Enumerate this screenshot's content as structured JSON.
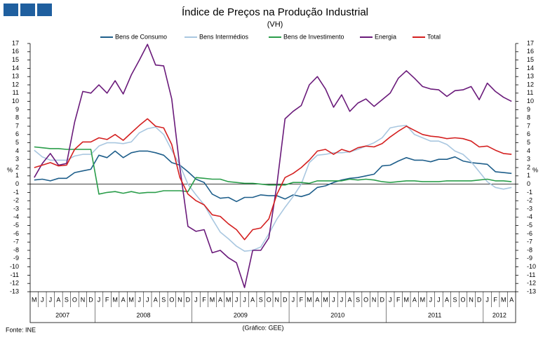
{
  "chart_data": {
    "type": "line",
    "title": "Índice de Preços na Produção Industrial",
    "subtitle": "(VH)",
    "ylabel": "%",
    "y2label": "%",
    "source": "Fonte: INE",
    "credit": "(Gráfico: GEE)",
    "categories": [
      "M",
      "J",
      "J",
      "A",
      "S",
      "O",
      "N",
      "D",
      "J",
      "F",
      "M",
      "A",
      "M",
      "J",
      "J",
      "A",
      "S",
      "O",
      "N",
      "D",
      "J",
      "F",
      "M",
      "A",
      "M",
      "J",
      "J",
      "A",
      "S",
      "O",
      "N",
      "D",
      "J",
      "F",
      "M",
      "A",
      "M",
      "J",
      "J",
      "A",
      "S",
      "O",
      "N",
      "D",
      "J",
      "F",
      "M",
      "A",
      "M",
      "J",
      "J",
      "A",
      "S",
      "O",
      "N",
      "D",
      "J",
      "F",
      "M",
      "A"
    ],
    "years": [
      "2007",
      "2008",
      "2009",
      "2010",
      "2011",
      "2012"
    ],
    "ylim": [
      -13,
      17
    ],
    "yticks": [
      -13,
      -12,
      -11,
      -10,
      -9,
      -8,
      -7,
      -6,
      -5,
      -4,
      -3,
      -2,
      -1,
      0,
      1,
      2,
      3,
      4,
      5,
      6,
      7,
      8,
      9,
      10,
      11,
      12,
      13,
      14,
      15,
      16,
      17
    ],
    "grid": false,
    "legend": "top",
    "series": [
      {
        "name": "Bens de Consumo",
        "color": "#1f5f8b",
        "values": [
          0.5,
          0.6,
          0.4,
          0.7,
          0.7,
          1.4,
          1.6,
          1.8,
          3.5,
          3.2,
          4.0,
          3.2,
          3.8,
          4.0,
          4.0,
          3.8,
          3.5,
          2.6,
          2.3,
          1.5,
          0.6,
          0.2,
          -1.2,
          -1.7,
          -1.6,
          -2.1,
          -1.6,
          -1.6,
          -1.3,
          -1.4,
          -1.4,
          -1.8,
          -1.3,
          -1.5,
          -1.2,
          -0.4,
          -0.2,
          0.2,
          0.5,
          0.7,
          0.8,
          1.0,
          1.2,
          2.2,
          2.3,
          2.8,
          3.2,
          2.9,
          2.9,
          2.7,
          3.0,
          3.0,
          3.3,
          2.8,
          2.6,
          2.5,
          2.4,
          1.5,
          1.4,
          1.3
        ]
      },
      {
        "name": "Bens Intermédios",
        "color": "#a9c7e0",
        "values": [
          4.1,
          3.3,
          2.9,
          2.9,
          2.9,
          3.4,
          3.6,
          3.6,
          4.6,
          5.0,
          5.0,
          4.9,
          5.1,
          6.2,
          6.7,
          6.9,
          6.0,
          4.1,
          2.3,
          0.0,
          -1.3,
          -2.5,
          -4.2,
          -5.8,
          -6.6,
          -7.5,
          -8.1,
          -8.0,
          -7.6,
          -6.0,
          -4.2,
          -2.8,
          -1.5,
          0.0,
          2.6,
          3.5,
          3.6,
          3.8,
          3.8,
          3.9,
          4.2,
          4.6,
          5.0,
          5.6,
          6.8,
          7.0,
          7.1,
          6.0,
          5.6,
          5.2,
          5.2,
          4.8,
          4.0,
          3.6,
          2.7,
          1.5,
          0.3,
          -0.4,
          -0.6,
          -0.4
        ]
      },
      {
        "name": "Bens de Investimento",
        "color": "#2a9d4a",
        "values": [
          4.5,
          4.4,
          4.3,
          4.3,
          4.2,
          4.2,
          4.2,
          4.2,
          -1.2,
          -1.0,
          -0.9,
          -1.1,
          -0.9,
          -1.1,
          -1.0,
          -1.0,
          -0.8,
          -0.8,
          -0.8,
          -0.9,
          0.8,
          0.7,
          0.6,
          0.6,
          0.3,
          0.2,
          0.1,
          0.1,
          0.0,
          -0.1,
          -0.1,
          -0.1,
          0.2,
          0.2,
          0.1,
          0.4,
          0.4,
          0.4,
          0.4,
          0.6,
          0.5,
          0.6,
          0.5,
          0.3,
          0.2,
          0.3,
          0.4,
          0.4,
          0.3,
          0.3,
          0.3,
          0.4,
          0.4,
          0.4,
          0.4,
          0.5,
          0.6,
          0.4,
          0.4,
          0.3
        ]
      },
      {
        "name": "Energia",
        "color": "#6a1a7a",
        "values": [
          0.8,
          2.5,
          3.7,
          2.3,
          2.5,
          7.5,
          11.2,
          11.0,
          12.0,
          11.0,
          12.5,
          10.9,
          13.2,
          15.0,
          16.9,
          14.4,
          14.3,
          10.3,
          2.0,
          -5.1,
          -5.7,
          -5.5,
          -8.3,
          -8.0,
          -8.9,
          -9.5,
          -12.5,
          -8.0,
          -8.0,
          -6.5,
          0,
          7.9,
          8.8,
          9.5,
          12.0,
          13.0,
          11.5,
          9.3,
          10.8,
          8.8,
          9.8,
          10.3,
          9.4,
          10.2,
          11.0,
          12.8,
          13.7,
          12.8,
          11.8,
          11.5,
          11.4,
          10.6,
          11.3,
          11.4,
          11.8,
          10.2,
          12.2,
          11.2,
          10.5,
          10.0
        ]
      },
      {
        "name": "Total",
        "color": "#d42020",
        "values": [
          2.0,
          2.3,
          2.6,
          2.2,
          2.3,
          4.2,
          5.1,
          5.1,
          5.6,
          5.4,
          6.0,
          5.3,
          6.2,
          7.1,
          7.9,
          7.0,
          6.8,
          4.8,
          0.8,
          -1.2,
          -2.0,
          -2.5,
          -3.7,
          -3.9,
          -4.8,
          -5.5,
          -6.7,
          -5.5,
          -5.3,
          -4.2,
          -1.2,
          0.8,
          1.3,
          2.0,
          2.9,
          4.0,
          4.2,
          3.6,
          4.2,
          3.9,
          4.4,
          4.6,
          4.5,
          4.9,
          5.7,
          6.4,
          7.0,
          6.5,
          6.0,
          5.8,
          5.7,
          5.5,
          5.6,
          5.5,
          5.2,
          4.5,
          4.6,
          4.1,
          3.7,
          3.6
        ]
      }
    ]
  }
}
